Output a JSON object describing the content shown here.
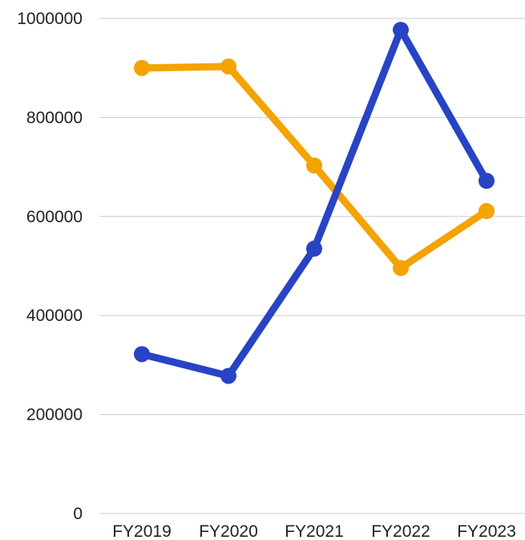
{
  "chart_data": {
    "type": "line",
    "categories": [
      "FY2019",
      "FY2020",
      "FY2021",
      "FY2022",
      "FY2023"
    ],
    "ylim": [
      0,
      1000000
    ],
    "yticks": [
      "0",
      "200000",
      "400000",
      "600000",
      "800000",
      "1000000"
    ],
    "grid": true,
    "series": [
      {
        "color": "#F4A300",
        "values": [
          900000,
          903000,
          703000,
          496000,
          611000
        ]
      },
      {
        "color": "#2843C4",
        "values": [
          322000,
          278000,
          535000,
          977000,
          672000
        ]
      }
    ]
  }
}
